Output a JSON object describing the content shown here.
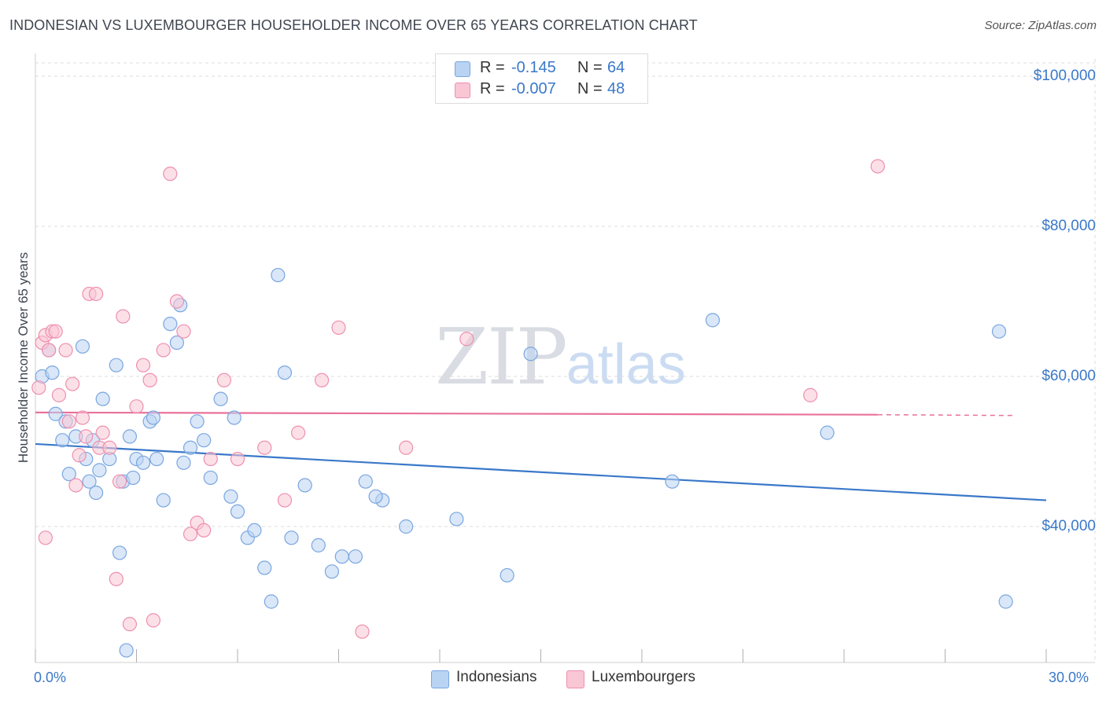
{
  "title": "INDONESIAN VS LUXEMBOURGER HOUSEHOLDER INCOME OVER 65 YEARS CORRELATION CHART",
  "source": "Source: ZipAtlas.com",
  "watermark": {
    "zip": "ZIP",
    "atlas": "atlas"
  },
  "stats": [
    {
      "r_label": "R = ",
      "r_value": "-0.145",
      "n_label": "N = ",
      "n_value": "64",
      "color": "#b9d3f3",
      "border": "#7aa6e0"
    },
    {
      "r_label": "R = ",
      "r_value": "-0.007",
      "n_label": "N = ",
      "n_value": "48",
      "color": "#f9c6d6",
      "border": "#ee8fae"
    }
  ],
  "legend": [
    {
      "label": "Indonesians",
      "color": "#b9d3f3",
      "border": "#7aa6e0"
    },
    {
      "label": "Luxembourgers",
      "color": "#f9c6d6",
      "border": "#ee8fae"
    }
  ],
  "chart_data": {
    "type": "scatter",
    "title": "INDONESIAN VS LUXEMBOURGER HOUSEHOLDER INCOME OVER 65 YEARS CORRELATION CHART",
    "xlabel": "",
    "ylabel": "Householder Income Over 65 years",
    "xlim": [
      0,
      30
    ],
    "ylim": [
      22000,
      103000
    ],
    "x_tick_labels": [
      "0.0%",
      "30.0%"
    ],
    "y_ticks": [
      40000,
      60000,
      80000,
      100000
    ],
    "y_tick_labels": [
      "$40,000",
      "$60,000",
      "$80,000",
      "$100,000"
    ],
    "grid": true,
    "series": [
      {
        "name": "Indonesians",
        "color": "#7aa6e0",
        "fill": "#b9d3f3",
        "line_color": "#3a78c9",
        "trend": {
          "x": [
            0,
            30
          ],
          "y": [
            51000,
            43500
          ]
        },
        "x": [
          0.2,
          0.4,
          0.5,
          0.6,
          0.8,
          0.9,
          1.0,
          1.2,
          1.4,
          1.5,
          1.6,
          1.8,
          1.9,
          2.0,
          2.2,
          2.4,
          2.5,
          2.6,
          2.8,
          2.9,
          3.0,
          3.2,
          3.4,
          3.5,
          3.6,
          3.8,
          4.0,
          4.2,
          4.3,
          4.6,
          4.8,
          5.0,
          5.2,
          5.5,
          5.8,
          6.0,
          6.3,
          6.5,
          6.8,
          7.0,
          7.2,
          7.6,
          8.0,
          8.4,
          8.8,
          9.1,
          9.5,
          9.8,
          10.3,
          11.0,
          12.5,
          14.0,
          14.7,
          18.9,
          20.1,
          23.5,
          28.6,
          28.8,
          1.7,
          2.7,
          4.4,
          5.9,
          7.4,
          10.1
        ],
        "y": [
          60000,
          63500,
          60500,
          55000,
          51500,
          54000,
          47000,
          52000,
          64000,
          49000,
          46000,
          44500,
          47500,
          57000,
          49000,
          61500,
          36500,
          46000,
          52000,
          46500,
          49000,
          48500,
          54000,
          54500,
          49000,
          43500,
          67000,
          64500,
          69500,
          50500,
          54000,
          51500,
          46500,
          57000,
          44000,
          42000,
          38500,
          39500,
          34500,
          30000,
          73500,
          38500,
          45500,
          37500,
          34000,
          36000,
          36000,
          46000,
          43500,
          40000,
          41000,
          33500,
          63000,
          46000,
          67500,
          52500,
          66000,
          30000,
          51500,
          23500,
          48500,
          54500,
          60500,
          44000
        ]
      },
      {
        "name": "Luxembourgers",
        "color": "#ee8fae",
        "fill": "#f9c6d6",
        "line_color": "#e8719b",
        "trend": {
          "x": [
            0,
            25
          ],
          "y": [
            55200,
            54900
          ]
        },
        "trend_dashed": {
          "x": [
            25,
            29
          ],
          "y": [
            54900,
            54800
          ]
        },
        "x": [
          0.1,
          0.2,
          0.3,
          0.4,
          0.5,
          0.6,
          0.7,
          0.9,
          1.0,
          1.1,
          1.3,
          1.4,
          1.5,
          1.6,
          1.8,
          1.9,
          2.0,
          2.2,
          2.4,
          2.5,
          2.6,
          2.8,
          3.0,
          3.2,
          3.4,
          3.5,
          3.8,
          4.0,
          4.2,
          4.4,
          4.6,
          4.8,
          5.0,
          5.2,
          5.6,
          6.0,
          6.8,
          7.4,
          7.8,
          8.5,
          9.0,
          9.7,
          11.0,
          12.8,
          23.0,
          25.0,
          0.3,
          1.2
        ],
        "y": [
          58500,
          64500,
          65500,
          63500,
          66000,
          66000,
          57500,
          63500,
          54000,
          59000,
          49500,
          54500,
          52000,
          71000,
          71000,
          50500,
          52500,
          50500,
          33000,
          46000,
          68000,
          27000,
          56000,
          61500,
          59500,
          27500,
          63500,
          87000,
          70000,
          66000,
          39000,
          40500,
          39500,
          49000,
          59500,
          49000,
          50500,
          43500,
          52500,
          59500,
          66500,
          26000,
          50500,
          65000,
          57500,
          88000,
          38500,
          45500
        ]
      }
    ]
  }
}
